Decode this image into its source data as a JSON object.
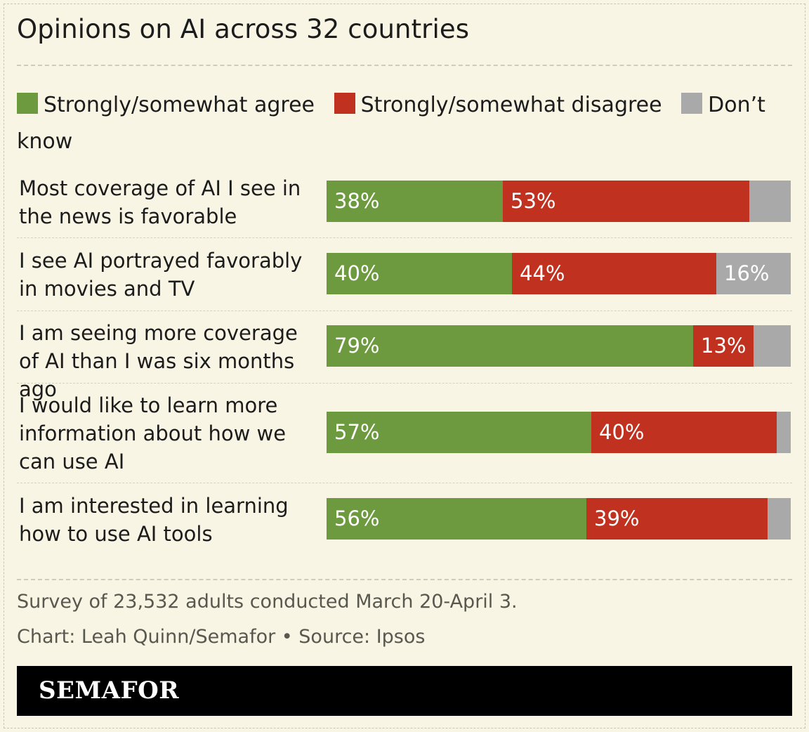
{
  "title": "Opinions on AI across 32 countries",
  "legend": [
    {
      "label": "Strongly/somewhat agree",
      "color": "#6e9a3f"
    },
    {
      "label": "Strongly/somewhat disagree",
      "color": "#c0321f"
    },
    {
      "label": "Don’t know",
      "color": "#a9a9a9"
    }
  ],
  "chart_data": {
    "type": "bar",
    "orientation": "horizontal",
    "stacked": true,
    "normalized": true,
    "categories": [
      "Most coverage of AI I see in the news is favorable",
      "I see AI portrayed favorably in movies and TV",
      "I am seeing more coverage of AI than I was six months ago",
      "I would like to learn more information about how we can use AI",
      "I am interested in learning how to use AI tools"
    ],
    "series": [
      {
        "name": "Strongly/somewhat agree",
        "values": [
          38,
          40,
          79,
          57,
          56
        ],
        "labels": [
          "38%",
          "40%",
          "79%",
          "57%",
          "56%"
        ],
        "color": "#6e9a3f"
      },
      {
        "name": "Strongly/somewhat disagree",
        "values": [
          53,
          44,
          13,
          40,
          39
        ],
        "labels": [
          "53%",
          "44%",
          "13%",
          "40%",
          "39%"
        ],
        "color": "#c0321f"
      },
      {
        "name": "Don’t know",
        "values": [
          9,
          16,
          8,
          3,
          5
        ],
        "labels": [
          "",
          "16%",
          "",
          "",
          ""
        ],
        "color": "#a9a9a9"
      }
    ],
    "xlim": [
      0,
      100
    ],
    "legend_position": "top"
  },
  "footnotes": {
    "survey": "Survey of 23,532 adults conducted March 20-April 3.",
    "credit": "Chart: Leah Quinn/Semafor • Source: Ipsos"
  },
  "brand": "SEMAFOR"
}
